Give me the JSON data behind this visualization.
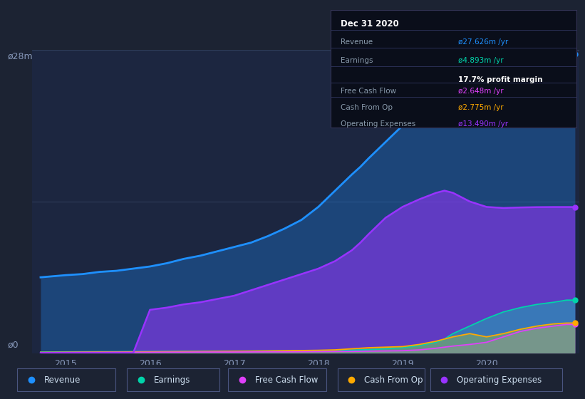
{
  "bg_color": "#1c2333",
  "chart_bg": "#1c2640",
  "title": "Dec 31 2020",
  "ylabel_text": "ø28m",
  "ylabel0_text": "ø0",
  "revenue_color": "#1e90ff",
  "earnings_color": "#00d4aa",
  "free_cash_flow_color": "#e040fb",
  "cash_from_op_color": "#ffaa00",
  "operating_expenses_color": "#9933ff",
  "ylim_max": 28,
  "ylim_min": 0,
  "xlim_min": 2014.6,
  "xlim_max": 2021.1,
  "x_ticks": [
    2015,
    2016,
    2017,
    2018,
    2019,
    2020
  ],
  "x_labels": [
    "2015",
    "2016",
    "2017",
    "2018",
    "2019",
    "2020"
  ],
  "info_box": {
    "date": "Dec 31 2020",
    "revenue_label": "Revenue",
    "revenue_val": "ø27.626m /yr",
    "earnings_label": "Earnings",
    "earnings_val": "ø4.893m /yr",
    "profit_margin": "17.7% profit margin",
    "fcf_label": "Free Cash Flow",
    "fcf_val": "ø2.648m /yr",
    "cashop_label": "Cash From Op",
    "cashop_val": "ø2.775m /yr",
    "opex_label": "Operating Expenses",
    "opex_val": "ø13.490m /yr"
  },
  "legend_items": [
    {
      "label": "Revenue",
      "color": "#1e90ff"
    },
    {
      "label": "Earnings",
      "color": "#00d4aa"
    },
    {
      "label": "Free Cash Flow",
      "color": "#e040fb"
    },
    {
      "label": "Cash From Op",
      "color": "#ffaa00"
    },
    {
      "label": "Operating Expenses",
      "color": "#9933ff"
    }
  ]
}
